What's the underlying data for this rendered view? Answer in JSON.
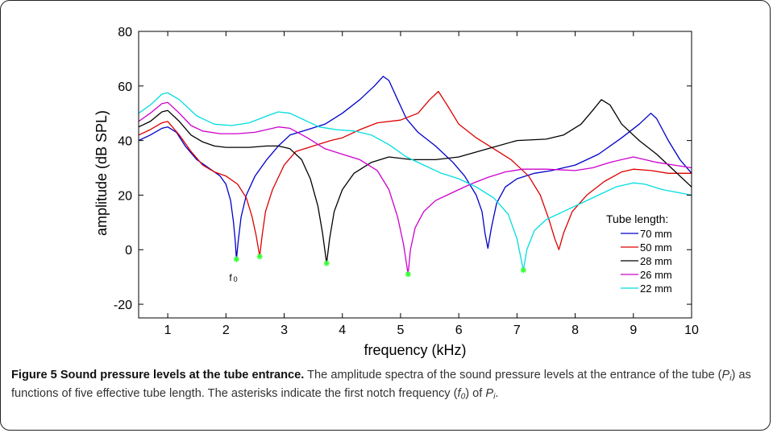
{
  "figure": {
    "caption": {
      "label": "Figure 5",
      "title": "Sound pressure levels at the tube entrance.",
      "text1": "The amplitude spectra of the sound pressure levels at the entrance of the tube (",
      "p_symbol": "P",
      "p_sub": "i",
      "text2": ") as functions of five effective tube length. The asterisks indicate the first notch frequency (",
      "f_symbol": "f",
      "f_sub": "0",
      "text3": ") of ",
      "text4": "."
    }
  },
  "chart_data": {
    "type": "line",
    "xlabel": "frequency (kHz)",
    "ylabel": "amplitude (dB SPL)",
    "xlim": [
      0.5,
      10
    ],
    "ylim": [
      -25,
      80
    ],
    "xticks": [
      1,
      2,
      3,
      4,
      5,
      6,
      7,
      8,
      9,
      10
    ],
    "yticks": [
      -20,
      0,
      20,
      40,
      60,
      80
    ],
    "legend_title": "Tube length:",
    "legend_position": "bottom-right",
    "grid": false,
    "annotation": {
      "text": "f",
      "sub": "0"
    },
    "marker_color": "#33ff33",
    "series": [
      {
        "name": "70 mm",
        "color": "#0000cc",
        "notch": [
          2.18,
          -3.5
        ],
        "points": [
          [
            0.5,
            40
          ],
          [
            0.7,
            42
          ],
          [
            0.9,
            44.5
          ],
          [
            1.0,
            45
          ],
          [
            1.15,
            43
          ],
          [
            1.3,
            38
          ],
          [
            1.5,
            33
          ],
          [
            1.7,
            30
          ],
          [
            1.9,
            27
          ],
          [
            2.0,
            24
          ],
          [
            2.08,
            18
          ],
          [
            2.13,
            10
          ],
          [
            2.16,
            3
          ],
          [
            2.18,
            -3.5
          ],
          [
            2.21,
            3
          ],
          [
            2.26,
            12
          ],
          [
            2.35,
            20
          ],
          [
            2.5,
            27
          ],
          [
            2.7,
            33
          ],
          [
            2.9,
            38
          ],
          [
            3.1,
            42
          ],
          [
            3.4,
            44
          ],
          [
            3.7,
            46
          ],
          [
            4.0,
            50
          ],
          [
            4.3,
            55
          ],
          [
            4.55,
            60
          ],
          [
            4.7,
            63.5
          ],
          [
            4.8,
            62
          ],
          [
            4.95,
            55
          ],
          [
            5.1,
            48
          ],
          [
            5.3,
            43
          ],
          [
            5.6,
            38
          ],
          [
            5.9,
            32
          ],
          [
            6.1,
            27
          ],
          [
            6.3,
            20
          ],
          [
            6.4,
            14
          ],
          [
            6.45,
            6
          ],
          [
            6.5,
            0.5
          ],
          [
            6.56,
            8
          ],
          [
            6.65,
            17
          ],
          [
            6.8,
            23
          ],
          [
            7.0,
            26
          ],
          [
            7.3,
            28
          ],
          [
            7.6,
            29
          ],
          [
            8.0,
            31
          ],
          [
            8.4,
            35
          ],
          [
            8.8,
            41
          ],
          [
            9.1,
            46
          ],
          [
            9.3,
            50
          ],
          [
            9.4,
            48
          ],
          [
            9.6,
            40
          ],
          [
            9.8,
            33
          ],
          [
            10.0,
            28
          ]
        ]
      },
      {
        "name": "50 mm",
        "color": "#dd0000",
        "notch": [
          2.58,
          -2.5
        ],
        "points": [
          [
            0.5,
            42
          ],
          [
            0.7,
            44
          ],
          [
            0.9,
            46.5
          ],
          [
            1.0,
            47
          ],
          [
            1.2,
            42
          ],
          [
            1.4,
            36
          ],
          [
            1.6,
            31
          ],
          [
            1.8,
            28.5
          ],
          [
            2.0,
            27
          ],
          [
            2.2,
            24
          ],
          [
            2.35,
            19
          ],
          [
            2.45,
            12
          ],
          [
            2.52,
            5
          ],
          [
            2.58,
            -2.5
          ],
          [
            2.62,
            5
          ],
          [
            2.68,
            14
          ],
          [
            2.8,
            22
          ],
          [
            3.0,
            31
          ],
          [
            3.2,
            36
          ],
          [
            3.5,
            38
          ],
          [
            3.8,
            40
          ],
          [
            4.0,
            41
          ],
          [
            4.3,
            44
          ],
          [
            4.6,
            46.5
          ],
          [
            5.0,
            47.5
          ],
          [
            5.3,
            50
          ],
          [
            5.5,
            55
          ],
          [
            5.65,
            58
          ],
          [
            5.8,
            53
          ],
          [
            6.0,
            46
          ],
          [
            6.3,
            41
          ],
          [
            6.6,
            37
          ],
          [
            6.9,
            33
          ],
          [
            7.2,
            27
          ],
          [
            7.4,
            20
          ],
          [
            7.55,
            11
          ],
          [
            7.65,
            4
          ],
          [
            7.72,
            0
          ],
          [
            7.8,
            6
          ],
          [
            7.95,
            14
          ],
          [
            8.2,
            20
          ],
          [
            8.5,
            25
          ],
          [
            8.8,
            28.5
          ],
          [
            9.0,
            29.5
          ],
          [
            9.3,
            29
          ],
          [
            9.6,
            28
          ],
          [
            10.0,
            28
          ]
        ]
      },
      {
        "name": "28 mm",
        "color": "#000000",
        "notch": [
          3.73,
          -5.0
        ],
        "points": [
          [
            0.5,
            45
          ],
          [
            0.7,
            47
          ],
          [
            0.9,
            50.5
          ],
          [
            1.0,
            51
          ],
          [
            1.2,
            47
          ],
          [
            1.4,
            42
          ],
          [
            1.6,
            39.5
          ],
          [
            1.8,
            38
          ],
          [
            2.0,
            37.5
          ],
          [
            2.4,
            37.5
          ],
          [
            2.7,
            38
          ],
          [
            2.9,
            38
          ],
          [
            3.1,
            37
          ],
          [
            3.3,
            33
          ],
          [
            3.45,
            26
          ],
          [
            3.58,
            16
          ],
          [
            3.66,
            6
          ],
          [
            3.73,
            -5
          ],
          [
            3.78,
            4
          ],
          [
            3.86,
            14
          ],
          [
            4.0,
            22
          ],
          [
            4.2,
            28
          ],
          [
            4.5,
            32
          ],
          [
            4.8,
            34
          ],
          [
            5.2,
            33
          ],
          [
            5.6,
            33
          ],
          [
            6.0,
            34
          ],
          [
            6.5,
            37
          ],
          [
            7.0,
            40
          ],
          [
            7.5,
            40.5
          ],
          [
            7.8,
            42
          ],
          [
            8.1,
            46
          ],
          [
            8.3,
            51
          ],
          [
            8.45,
            55
          ],
          [
            8.6,
            53
          ],
          [
            8.8,
            46
          ],
          [
            9.1,
            40
          ],
          [
            9.4,
            35
          ],
          [
            9.7,
            29
          ],
          [
            10.0,
            23
          ]
        ]
      },
      {
        "name": "26 mm",
        "color": "#cc00cc",
        "notch": [
          5.13,
          -9.0
        ],
        "points": [
          [
            0.5,
            47
          ],
          [
            0.7,
            50
          ],
          [
            0.9,
            53.5
          ],
          [
            1.0,
            54
          ],
          [
            1.2,
            50
          ],
          [
            1.4,
            45.5
          ],
          [
            1.6,
            43.5
          ],
          [
            1.9,
            42.5
          ],
          [
            2.2,
            42.5
          ],
          [
            2.5,
            43
          ],
          [
            2.9,
            45
          ],
          [
            3.1,
            44.5
          ],
          [
            3.4,
            41
          ],
          [
            3.7,
            37
          ],
          [
            4.0,
            35
          ],
          [
            4.3,
            33
          ],
          [
            4.6,
            29
          ],
          [
            4.8,
            22
          ],
          [
            4.95,
            12
          ],
          [
            5.05,
            2
          ],
          [
            5.13,
            -9
          ],
          [
            5.17,
            0
          ],
          [
            5.25,
            8
          ],
          [
            5.4,
            14
          ],
          [
            5.6,
            18
          ],
          [
            5.9,
            21
          ],
          [
            6.2,
            24
          ],
          [
            6.5,
            26.5
          ],
          [
            6.8,
            28.5
          ],
          [
            7.1,
            29.5
          ],
          [
            7.5,
            29.5
          ],
          [
            8.0,
            29
          ],
          [
            8.3,
            30
          ],
          [
            8.6,
            32
          ],
          [
            9.0,
            34
          ],
          [
            9.4,
            32
          ],
          [
            9.7,
            31
          ],
          [
            10.0,
            30
          ]
        ]
      },
      {
        "name": "22 mm",
        "color": "#00dddd",
        "notch": [
          7.11,
          -7.5
        ],
        "points": [
          [
            0.5,
            50
          ],
          [
            0.7,
            53
          ],
          [
            0.9,
            57
          ],
          [
            1.0,
            57.5
          ],
          [
            1.2,
            55
          ],
          [
            1.5,
            49
          ],
          [
            1.8,
            46
          ],
          [
            2.1,
            45.5
          ],
          [
            2.4,
            46.5
          ],
          [
            2.7,
            49
          ],
          [
            2.9,
            50.5
          ],
          [
            3.1,
            50
          ],
          [
            3.3,
            48
          ],
          [
            3.6,
            45
          ],
          [
            3.9,
            44
          ],
          [
            4.2,
            43.5
          ],
          [
            4.5,
            42
          ],
          [
            4.8,
            38.5
          ],
          [
            5.1,
            34
          ],
          [
            5.4,
            31
          ],
          [
            5.7,
            28
          ],
          [
            6.0,
            26
          ],
          [
            6.3,
            23
          ],
          [
            6.6,
            19
          ],
          [
            6.85,
            13
          ],
          [
            7.0,
            4
          ],
          [
            7.11,
            -7.5
          ],
          [
            7.17,
            0
          ],
          [
            7.3,
            7
          ],
          [
            7.5,
            11
          ],
          [
            7.8,
            14
          ],
          [
            8.1,
            17
          ],
          [
            8.4,
            20
          ],
          [
            8.7,
            23
          ],
          [
            9.0,
            24.5
          ],
          [
            9.2,
            24
          ],
          [
            9.5,
            22
          ],
          [
            10.0,
            20
          ]
        ]
      }
    ]
  }
}
